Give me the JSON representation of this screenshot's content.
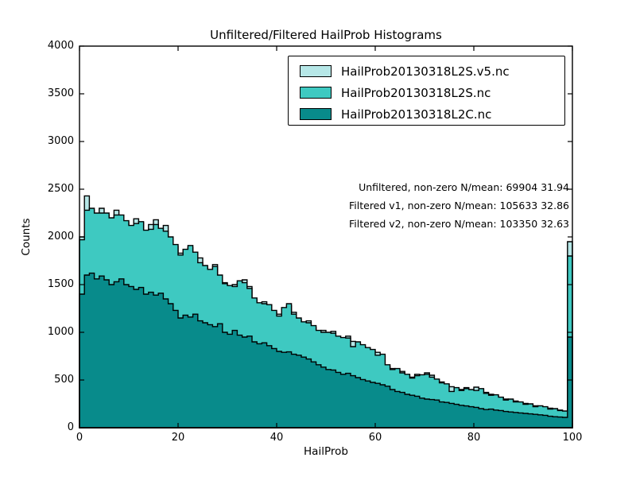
{
  "figure": {
    "title": "Unfiltered/Filtered HailProb Histograms",
    "xlabel": "HailProb",
    "ylabel": "Counts",
    "background": "#ffffff"
  },
  "chart_data": {
    "type": "bar",
    "subtype": "overlaid-stepfilled-histograms",
    "title": "Unfiltered/Filtered HailProb Histograms",
    "xlabel": "HailProb",
    "ylabel": "Counts",
    "xlim": [
      0,
      100
    ],
    "ylim": [
      0,
      4000
    ],
    "xticks": [
      0,
      20,
      40,
      60,
      80,
      100
    ],
    "yticks": [
      0,
      500,
      1000,
      1500,
      2000,
      2500,
      3000,
      3500,
      4000
    ],
    "grid": false,
    "legend_position": "upper right",
    "bin_width": 1,
    "bin_start": 0,
    "outline_color": "#000000",
    "annotations": [
      "Unfiltered, non-zero N/mean: 69904 31.94",
      "Filtered v1, non-zero N/mean: 105633 32.86",
      "Filtered v2, non-zero N/mean: 103350 32.63"
    ],
    "series": [
      {
        "name": "HailProb20130318L2S.v5.nc",
        "color": "#b6e7e7",
        "values": [
          2000,
          2430,
          2280,
          2230,
          2300,
          2230,
          2170,
          2280,
          2220,
          2150,
          2100,
          2190,
          2150,
          2050,
          2130,
          2180,
          2070,
          2120,
          1980,
          1900,
          1830,
          1860,
          1890,
          1830,
          1780,
          1680,
          1640,
          1710,
          1580,
          1520,
          1470,
          1500,
          1520,
          1550,
          1480,
          1340,
          1290,
          1320,
          1270,
          1210,
          1190,
          1240,
          1280,
          1210,
          1130,
          1090,
          1120,
          1050,
          1000,
          1020,
          980,
          1010,
          940,
          930,
          960,
          905,
          880,
          850,
          830,
          800,
          790,
          750,
          640,
          620,
          600,
          590,
          550,
          530,
          560,
          540,
          575,
          550,
          500,
          480,
          450,
          430,
          410,
          400,
          420,
          390,
          425,
          400,
          370,
          350,
          330,
          310,
          300,
          290,
          280,
          260,
          255,
          240,
          230,
          225,
          210,
          205,
          190,
          185,
          170,
          1950
        ]
      },
      {
        "name": "HailProb20130318L2S.nc",
        "color": "#3ec9c1",
        "values": [
          1970,
          2280,
          2300,
          2250,
          2250,
          2250,
          2200,
          2230,
          2230,
          2170,
          2120,
          2140,
          2160,
          2070,
          2080,
          2130,
          2090,
          2060,
          2000,
          1920,
          1810,
          1870,
          1910,
          1840,
          1730,
          1700,
          1660,
          1690,
          1600,
          1510,
          1490,
          1480,
          1540,
          1520,
          1460,
          1360,
          1310,
          1300,
          1290,
          1230,
          1170,
          1260,
          1300,
          1190,
          1150,
          1110,
          1100,
          1070,
          1020,
          1000,
          1000,
          990,
          960,
          945,
          940,
          850,
          900,
          870,
          840,
          820,
          760,
          770,
          660,
          610,
          620,
          575,
          560,
          520,
          545,
          555,
          560,
          530,
          510,
          470,
          460,
          380,
          420,
          390,
          410,
          400,
          390,
          410,
          360,
          340,
          345,
          320,
          290,
          300,
          270,
          270,
          245,
          250,
          220,
          230,
          220,
          195,
          200,
          180,
          175,
          1800
        ]
      },
      {
        "name": "HailProb20130318L2C.nc",
        "color": "#088b8b",
        "values": [
          1400,
          1600,
          1620,
          1560,
          1590,
          1550,
          1500,
          1530,
          1560,
          1500,
          1480,
          1450,
          1470,
          1400,
          1420,
          1390,
          1410,
          1350,
          1300,
          1230,
          1150,
          1180,
          1160,
          1190,
          1120,
          1100,
          1080,
          1060,
          1090,
          1000,
          980,
          1020,
          970,
          950,
          960,
          900,
          880,
          890,
          860,
          830,
          800,
          790,
          795,
          770,
          760,
          740,
          720,
          690,
          660,
          635,
          610,
          605,
          580,
          560,
          570,
          545,
          525,
          505,
          490,
          475,
          465,
          450,
          435,
          400,
          380,
          370,
          350,
          340,
          330,
          310,
          300,
          295,
          290,
          270,
          265,
          255,
          245,
          235,
          228,
          220,
          213,
          200,
          190,
          195,
          185,
          180,
          170,
          165,
          160,
          155,
          150,
          145,
          140,
          135,
          130,
          120,
          115,
          112,
          108,
          950
        ]
      }
    ]
  }
}
